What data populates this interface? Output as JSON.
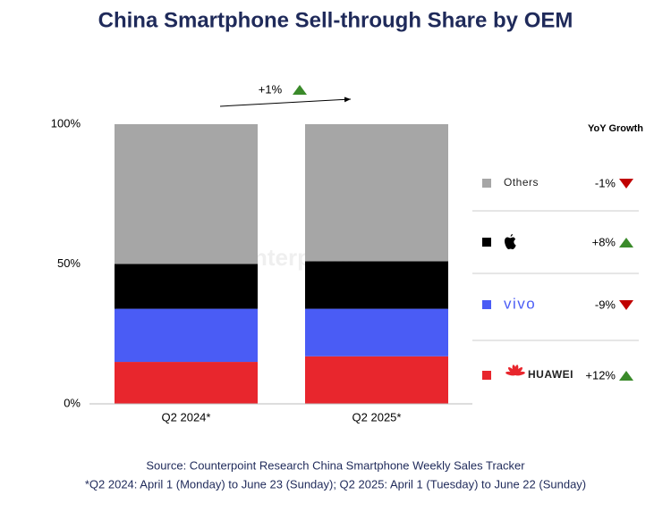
{
  "chart_data": {
    "type": "stacked_bar",
    "title": "China Smartphone Sell-through Share by OEM",
    "categories": [
      "Q2 2024*",
      "Q2 2025*"
    ],
    "series": [
      {
        "name": "HUAWEI",
        "color": "#e8262d",
        "values": [
          15,
          17
        ],
        "yoy": 12,
        "yoy_label": "+12%"
      },
      {
        "name": "vivo",
        "color": "#4a5cf5",
        "values": [
          19,
          17
        ],
        "yoy": -9,
        "yoy_label": "-9%"
      },
      {
        "color": "#000000",
        "values": [
          16,
          17
        ],
        "yoy": 8,
        "yoy_label": "+8%"
      },
      {
        "name": "Others",
        "color": "#a6a6a6",
        "values": [
          50,
          49
        ],
        "yoy": -1,
        "yoy_label": "-1%"
      }
    ],
    "ylim": [
      0,
      100
    ],
    "yticks": [
      {
        "value": 0,
        "label": "0%"
      },
      {
        "value": 50,
        "label": "50%"
      },
      {
        "value": 100,
        "label": "100%"
      }
    ],
    "legend_title": "YoY Growth",
    "annotation": "+1%",
    "watermark": "Counterpoint",
    "source": "Source: Counterpoint Research China Smartphone Weekly Sales Tracker",
    "note": "*Q2 2024: April 1 (Monday) to June 23 (Sunday); Q2 2025: April 1 (Tuesday) to June 22 (Sunday)"
  }
}
